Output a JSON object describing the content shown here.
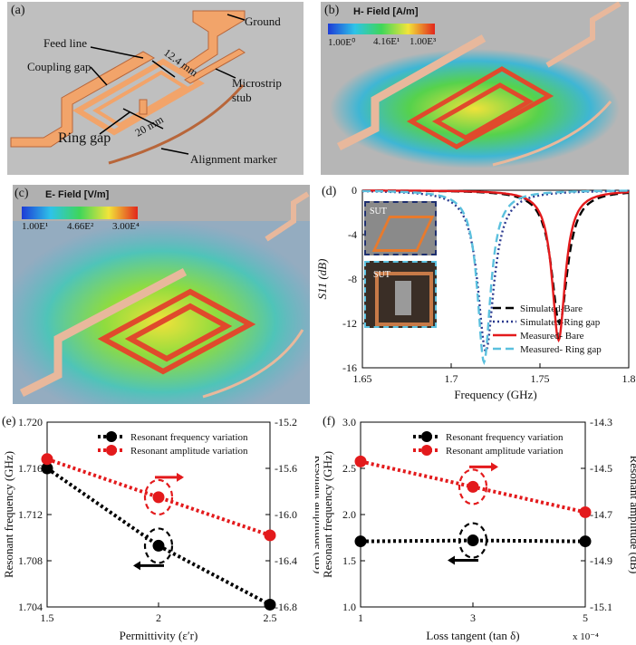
{
  "panel_a": {
    "label": "(a)",
    "annotations": {
      "ground": "Ground",
      "feed_line": "Feed line",
      "coupling_gap": "Coupling gap",
      "dim_12_4": "12.4 mm",
      "microstrip_stub": "Microstrip stub",
      "ring_gap": "Ring gap",
      "dim_20": "20 mm",
      "alignment_marker": "Alignment marker"
    }
  },
  "panel_b": {
    "label": "(b)",
    "colorbar_title": "H- Field [A/m]",
    "ticks": [
      "1.00E⁰",
      "4.16E¹",
      "1.00E³"
    ]
  },
  "panel_c": {
    "label": "(c)",
    "colorbar_title": "E- Field [V/m]",
    "ticks": [
      "1.00E¹",
      "4.66E²",
      "3.00E⁴"
    ]
  },
  "panel_d_label": "(d)",
  "panel_e_label": "(e)",
  "panel_f_label": "(f)",
  "inset_label_1": "SUT",
  "inset_label_2": "SUT",
  "chart_data": [
    {
      "id": "d",
      "type": "line",
      "xlabel": "Frequency (GHz)",
      "ylabel": "S11 (dB)",
      "xlim": [
        1.65,
        1.8
      ],
      "ylim": [
        -16,
        0
      ],
      "xticks": [
        "1.65",
        "1.7",
        "1.75",
        "1.8"
      ],
      "yticks": [
        "0",
        "-4",
        "-8",
        "-12",
        "-16"
      ],
      "legend_position": "bottom-right",
      "series": [
        {
          "name": "Simulated-Bare",
          "color": "#000000",
          "style": "dashed",
          "center": 1.761,
          "depth": -12.0,
          "width": 0.0055
        },
        {
          "name": "Simulated-Ring gap",
          "color": "#2b3a8f",
          "style": "dotted",
          "center": 1.7195,
          "depth": -14.5,
          "width": 0.0055
        },
        {
          "name": "Measured- Bare",
          "color": "#e31a1c",
          "style": "solid",
          "center": 1.7605,
          "depth": -13.5,
          "width": 0.0045
        },
        {
          "name": "Measured- Ring gap",
          "color": "#5bc0de",
          "style": "dashed",
          "center": 1.7185,
          "depth": -15.5,
          "width": 0.0045
        }
      ]
    },
    {
      "id": "e",
      "type": "line",
      "xlabel": "Permittivity (ε′r)",
      "ylabel": "Resonant frequency (GHz)",
      "ylabel_right": "Resonant amplitude (dB)",
      "xlim": [
        1.5,
        2.5
      ],
      "ylim": [
        1.704,
        1.72
      ],
      "ylim_right": [
        -16.8,
        -15.2
      ],
      "xticks": [
        "1.5",
        "2",
        "2.5"
      ],
      "yticks": [
        "1.704",
        "1.708",
        "1.712",
        "1.716",
        "1.720"
      ],
      "yticks_right": [
        "-16.8",
        "-16.4",
        "-16.0",
        "-15.6",
        "-15.2"
      ],
      "legend_position": "top-right",
      "series": [
        {
          "name": "Resonant frequency variation",
          "color": "#000000",
          "axis": "left",
          "x": [
            1.5,
            2.0,
            2.5
          ],
          "y": [
            1.716,
            1.7093,
            1.7042
          ]
        },
        {
          "name": "Resonant amplitude variation",
          "color": "#e31a1c",
          "axis": "right",
          "x": [
            1.5,
            2.0,
            2.5
          ],
          "y": [
            -15.52,
            -15.85,
            -16.18
          ]
        }
      ]
    },
    {
      "id": "f",
      "type": "line",
      "xlabel": "Loss tangent (tan δ)",
      "x_multiplier": "x 10⁻⁴",
      "ylabel": "Resonant frequency (GHz)",
      "ylabel_right": "Resonant amplitude (dB)",
      "xlim": [
        1,
        5
      ],
      "ylim": [
        1.0,
        3.0
      ],
      "ylim_right": [
        -15.1,
        -14.3
      ],
      "xticks": [
        "1",
        "3",
        "5"
      ],
      "yticks": [
        "1.0",
        "1.5",
        "2.0",
        "2.5",
        "3.0"
      ],
      "yticks_right": [
        "-15.1",
        "-14.9",
        "-14.7",
        "-14.5",
        "-14.3"
      ],
      "legend_position": "top-right",
      "series": [
        {
          "name": "Resonant frequency variation",
          "color": "#000000",
          "axis": "left",
          "x": [
            1,
            3,
            5
          ],
          "y": [
            1.71,
            1.72,
            1.71
          ]
        },
        {
          "name": "Resonant amplitude variation",
          "color": "#e31a1c",
          "axis": "right",
          "x": [
            1,
            3,
            5
          ],
          "y": [
            -14.47,
            -14.58,
            -14.69
          ]
        }
      ]
    }
  ]
}
